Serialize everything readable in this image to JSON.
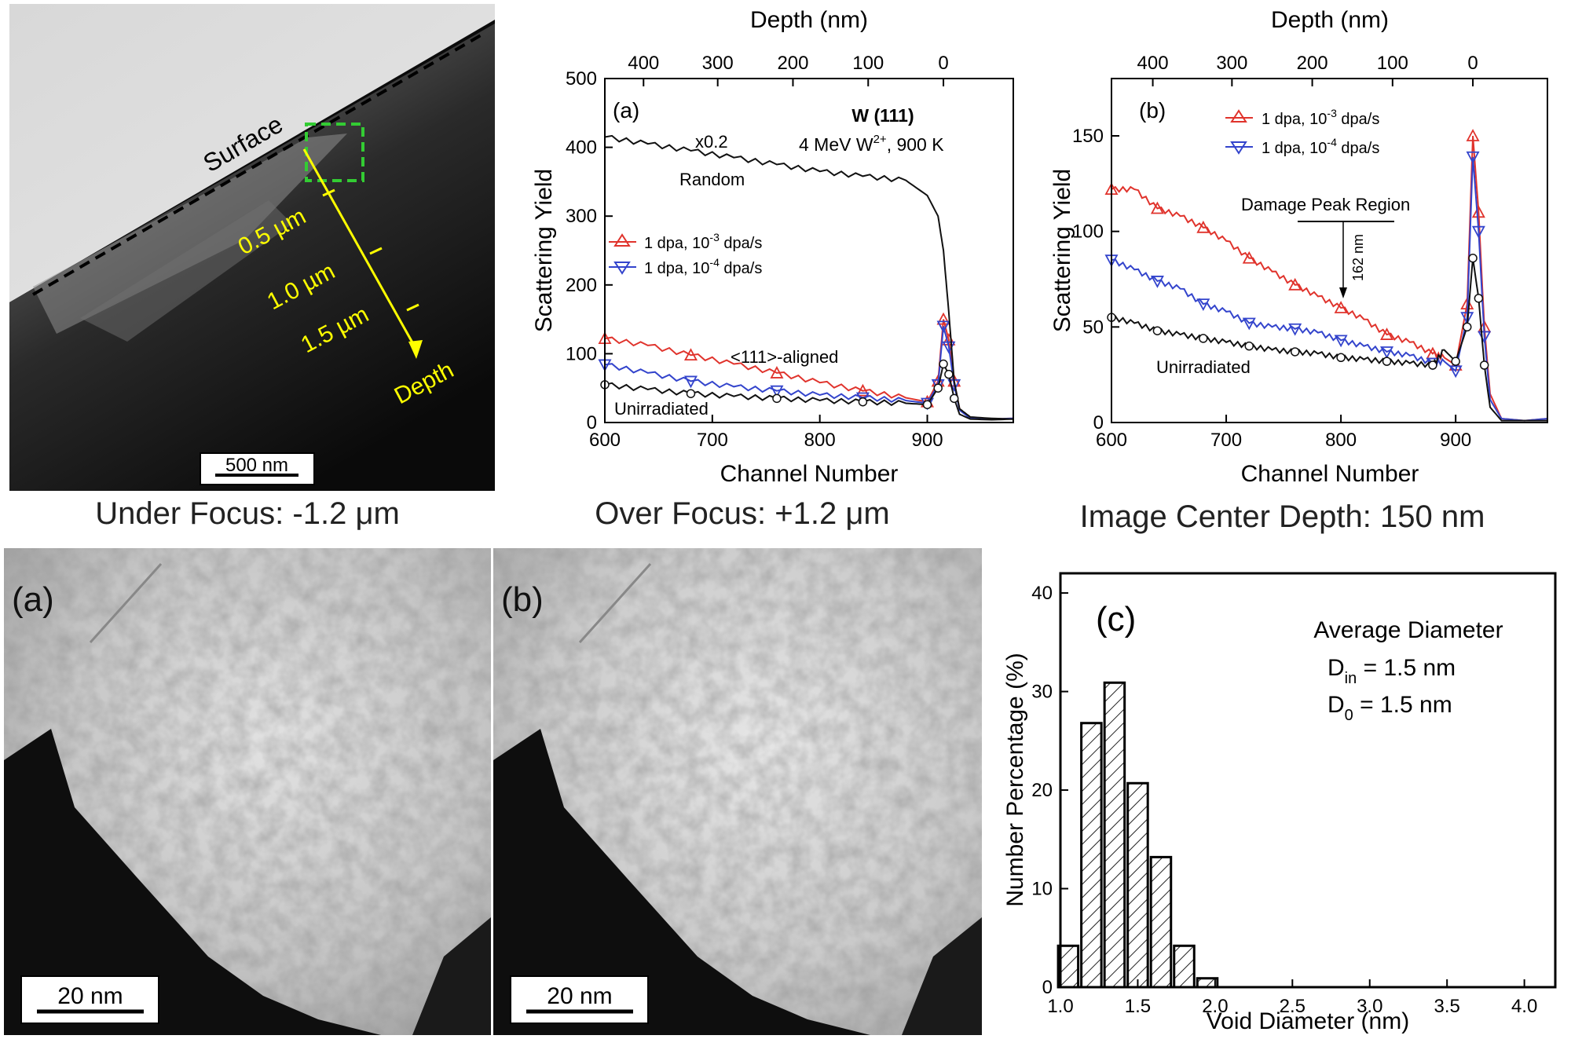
{
  "tem_top": {
    "surface_label": "Surface",
    "depth_marks": [
      "0.5 µm",
      "1.0 µm",
      "1.5 µm"
    ],
    "depth_label": "Depth",
    "scale_bar": "500 nm"
  },
  "focus_images": {
    "under_title": "Under Focus: -1.2 μm",
    "over_title": "Over Focus: +1.2 μm",
    "center_title": "Image Center Depth: 150 nm",
    "panel_a": "(a)",
    "panel_b": "(b)",
    "scale_a": "20 nm",
    "scale_b": "20 nm"
  },
  "chart_data": [
    {
      "type": "line",
      "panel": "(a)",
      "xlabel": "Channel Number",
      "ylabel": "Scattering Yield",
      "top_xlabel": "Depth (nm)",
      "xlim": [
        600,
        980
      ],
      "ylim": [
        0,
        500
      ],
      "xticks": [
        600,
        700,
        800,
        900
      ],
      "yticks": [
        0,
        100,
        200,
        300,
        400,
        500
      ],
      "top_ticks": [
        {
          "label": "400",
          "channel": 636
        },
        {
          "label": "300",
          "channel": 705
        },
        {
          "label": "200",
          "channel": 775
        },
        {
          "label": "100",
          "channel": 845
        },
        {
          "label": "0",
          "channel": 915
        }
      ],
      "annotations": {
        "sample": "W (111)",
        "beam_prefix": "4 MeV W",
        "beam_sup": "2+",
        "beam_suffix": ", 900 K",
        "scale": "x0.2",
        "random": "Random",
        "aligned": "<111>-aligned",
        "unirr": "Unirradiated"
      },
      "legend_position": "middle-left",
      "series": [
        {
          "name": "1 dpa, 10-3 dpa/s",
          "label_prefix": "1 dpa, 10",
          "label_sup": "-3",
          "label_suffix": " dpa/s",
          "color": "#e0332c",
          "marker": "triangle-up",
          "x": [
            600,
            640,
            680,
            720,
            760,
            800,
            840,
            880,
            900,
            910,
            915,
            920,
            925,
            930,
            940,
            960,
            980
          ],
          "y": [
            122,
            112,
            98,
            85,
            72,
            58,
            46,
            36,
            30,
            60,
            150,
            120,
            60,
            20,
            6,
            5,
            6
          ]
        },
        {
          "name": "1 dpa, 10-4 dpa/s",
          "label_prefix": "1 dpa, 10",
          "label_sup": "-4",
          "label_suffix": " dpa/s",
          "color": "#3344cc",
          "marker": "triangle-down",
          "x": [
            600,
            640,
            680,
            720,
            760,
            800,
            840,
            880,
            900,
            910,
            915,
            920,
            925,
            930,
            940,
            960,
            980
          ],
          "y": [
            84,
            72,
            60,
            52,
            46,
            40,
            36,
            32,
            28,
            55,
            140,
            110,
            55,
            18,
            6,
            5,
            6
          ]
        },
        {
          "name": "Random",
          "color": "#111111",
          "marker": "none",
          "x": [
            600,
            640,
            680,
            720,
            760,
            800,
            840,
            880,
            900,
            910,
            915,
            920,
            925,
            930,
            940,
            960,
            980
          ],
          "y": [
            415,
            405,
            395,
            385,
            375,
            365,
            358,
            352,
            330,
            300,
            250,
            160,
            60,
            20,
            8,
            6,
            5
          ]
        },
        {
          "name": "Unirradiated",
          "color": "#111111",
          "marker": "circle",
          "x": [
            600,
            640,
            680,
            720,
            760,
            800,
            840,
            880,
            900,
            910,
            915,
            920,
            925,
            930,
            940,
            960,
            980
          ],
          "y": [
            55,
            48,
            42,
            38,
            35,
            32,
            30,
            28,
            26,
            50,
            85,
            70,
            35,
            12,
            5,
            4,
            5
          ]
        }
      ]
    },
    {
      "type": "line",
      "panel": "(b)",
      "xlabel": "Channel Number",
      "ylabel": "Scattering Yield",
      "top_xlabel": "Depth (nm)",
      "xlim": [
        600,
        980
      ],
      "ylim": [
        0,
        180
      ],
      "xticks": [
        600,
        700,
        800,
        900
      ],
      "yticks": [
        0,
        50,
        100,
        150
      ],
      "top_ticks": [
        {
          "label": "400",
          "channel": 636
        },
        {
          "label": "300",
          "channel": 705
        },
        {
          "label": "200",
          "channel": 775
        },
        {
          "label": "100",
          "channel": 845
        },
        {
          "label": "0",
          "channel": 915
        }
      ],
      "annotations": {
        "damage_region": "Damage Peak Region",
        "depth_mark": "162 nm",
        "unirr": "Unirradiated"
      },
      "legend_position": "top-left",
      "series": [
        {
          "name": "1 dpa, 10-3 dpa/s",
          "label_prefix": "1 dpa, 10",
          "label_sup": "-3",
          "label_suffix": " dpa/s",
          "color": "#e0332c",
          "marker": "triangle-up",
          "x": [
            600,
            620,
            640,
            660,
            680,
            700,
            720,
            740,
            760,
            780,
            800,
            820,
            840,
            860,
            880,
            890,
            900,
            910,
            915,
            920,
            925,
            930,
            940,
            960,
            980
          ],
          "y": [
            122,
            122,
            112,
            108,
            102,
            95,
            86,
            79,
            72,
            66,
            60,
            54,
            46,
            42,
            36,
            34,
            30,
            62,
            150,
            110,
            50,
            15,
            2,
            1,
            2
          ]
        },
        {
          "name": "1 dpa, 10-4 dpa/s",
          "label_prefix": "1 dpa, 10",
          "label_sup": "-4",
          "label_suffix": " dpa/s",
          "color": "#3344cc",
          "marker": "triangle-down",
          "x": [
            600,
            620,
            640,
            660,
            680,
            700,
            720,
            740,
            760,
            780,
            800,
            820,
            840,
            860,
            880,
            890,
            900,
            910,
            915,
            920,
            925,
            930,
            940,
            960,
            980
          ],
          "y": [
            85,
            80,
            74,
            70,
            62,
            58,
            52,
            50,
            49,
            47,
            43,
            40,
            37,
            35,
            31,
            32,
            27,
            55,
            139,
            100,
            45,
            12,
            2,
            1,
            2
          ]
        },
        {
          "name": "Unirradiated",
          "color": "#111111",
          "marker": "circle",
          "x": [
            600,
            620,
            640,
            660,
            680,
            700,
            720,
            740,
            760,
            780,
            800,
            820,
            840,
            860,
            880,
            890,
            900,
            910,
            915,
            920,
            925,
            930,
            940,
            960,
            980
          ],
          "y": [
            55,
            52,
            48,
            46,
            44,
            42,
            40,
            38,
            37,
            36,
            34,
            33,
            32,
            31,
            30,
            38,
            32,
            50,
            86,
            65,
            30,
            8,
            1,
            1,
            1
          ]
        }
      ]
    },
    {
      "type": "bar",
      "panel": "(c)",
      "xlabel": "Void Diameter (nm)",
      "ylabel": "Number Percentage (%)",
      "xlim": [
        1.0,
        4.2
      ],
      "ylim": [
        0,
        42
      ],
      "xticks": [
        1.0,
        1.5,
        2.0,
        2.5,
        3.0,
        3.5,
        4.0
      ],
      "yticks": [
        0,
        10,
        20,
        30,
        40
      ],
      "bin_width": 0.15,
      "centers": [
        1.05,
        1.2,
        1.35,
        1.5,
        1.65,
        1.8,
        1.95,
        2.1,
        2.25
      ],
      "values": [
        4.2,
        26.8,
        30.9,
        20.7,
        13.2,
        4.2,
        0.9,
        0,
        0
      ],
      "annotations": {
        "title": "Average Diameter",
        "din_prefix": "D",
        "din_sub": "in",
        "din_value": " = 1.5 nm",
        "d0_prefix": "D",
        "d0_sub": "0",
        "d0_value": " = 1.5 nm"
      }
    }
  ]
}
